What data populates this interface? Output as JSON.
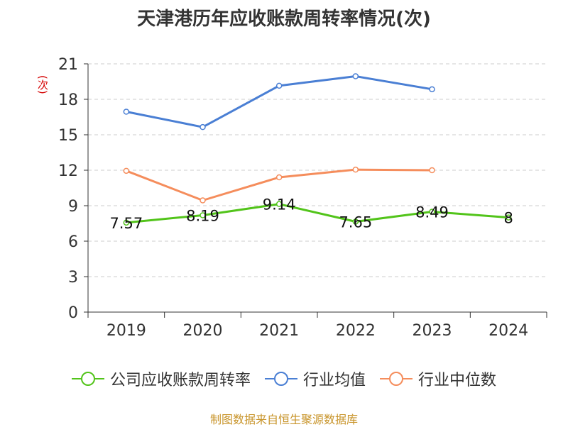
{
  "chart_data": {
    "type": "line",
    "title": "天津港历年应收账款周转率情况(次)",
    "ylabel": "(次)",
    "xlabel": "",
    "categories": [
      "2019",
      "2020",
      "2021",
      "2022",
      "2023",
      "2024"
    ],
    "ylim": [
      0,
      21
    ],
    "yticks": [
      0,
      3,
      6,
      9,
      12,
      15,
      18,
      21
    ],
    "grid": true,
    "legend_position": "bottom",
    "series": [
      {
        "name": "公司应收账款周转率",
        "color": "#52c41a",
        "values": [
          7.57,
          8.19,
          9.14,
          7.65,
          8.49,
          8
        ],
        "labels": [
          "7.57",
          "8.19",
          "9.14",
          "7.65",
          "8.49",
          "8"
        ]
      },
      {
        "name": "行业均值",
        "color": "#4a7fd4",
        "values": [
          16.95,
          15.65,
          19.15,
          19.95,
          18.85,
          null
        ]
      },
      {
        "name": "行业中位数",
        "color": "#f58d5c",
        "values": [
          11.95,
          9.45,
          11.4,
          12.05,
          12.0,
          null
        ]
      }
    ]
  },
  "source": "制图数据来自恒生聚源数据库"
}
